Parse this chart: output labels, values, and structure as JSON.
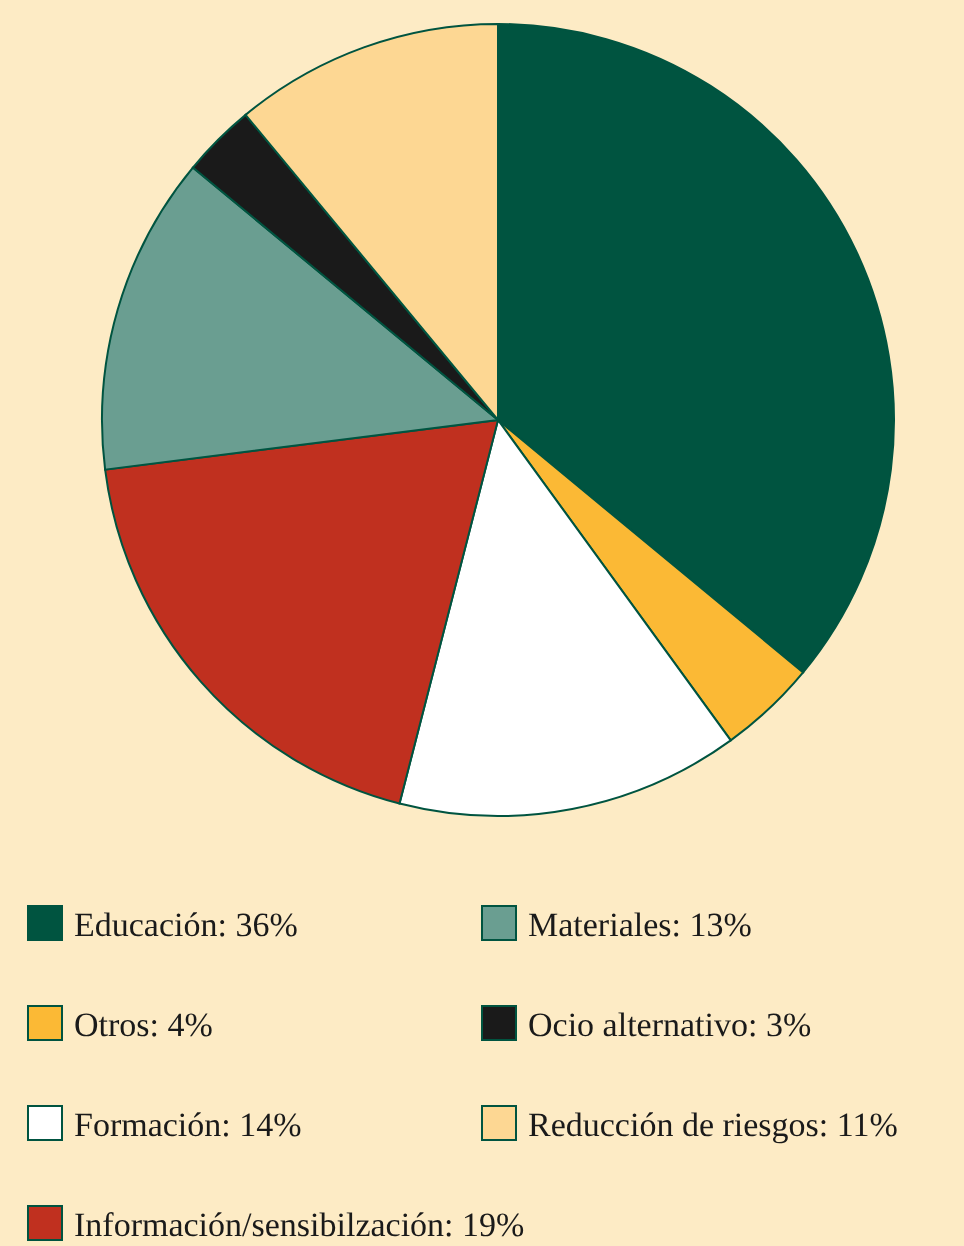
{
  "chart_data": {
    "type": "pie",
    "categories": [
      "Educación",
      "Otros",
      "Formación",
      "Información/sensibilzación",
      "Materiales",
      "Ocio alternativo",
      "Reducción de riesgos"
    ],
    "values": [
      36,
      4,
      14,
      19,
      13,
      3,
      11
    ],
    "value_labels": [
      "36%",
      "4%",
      "14%",
      "19%",
      "13%",
      "3%",
      "11%"
    ],
    "colors": [
      "#005440",
      "#fbb935",
      "#ffffff",
      "#c0301f",
      "#6a9e91",
      "#1a1a1a",
      "#fdd793"
    ],
    "legend": "bottom"
  }
}
